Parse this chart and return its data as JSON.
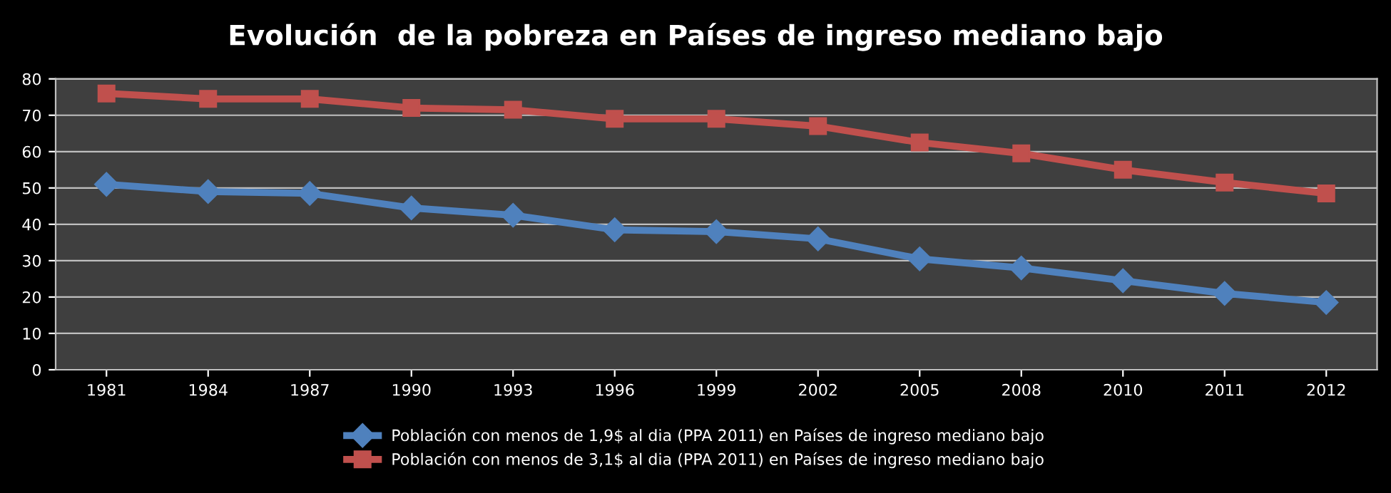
{
  "chart_data": {
    "type": "line",
    "title": "Evolución  de la pobreza en Países de ingreso mediano bajo",
    "categories": [
      "1981",
      "1984",
      "1987",
      "1990",
      "1993",
      "1996",
      "1999",
      "2002",
      "2005",
      "2008",
      "2010",
      "2011",
      "2012"
    ],
    "series": [
      {
        "name": "Población con menos de 1,9$ al dia (PPA 2011) en Países de ingreso mediano bajo",
        "color": "#4f81bd",
        "marker": "diamond",
        "values": [
          51,
          49,
          48.5,
          44.5,
          42.5,
          38.5,
          38,
          36,
          30.5,
          28,
          24.5,
          21,
          18.5
        ]
      },
      {
        "name": "Población con menos de 3,1$ al dia (PPA 2011) en Países de ingreso mediano bajo",
        "color": "#c0504d",
        "marker": "square",
        "values": [
          76,
          74.5,
          74.5,
          72,
          71.5,
          69,
          69,
          67,
          62.5,
          59.5,
          55,
          51.5,
          48.5
        ]
      }
    ],
    "ylim": [
      0,
      80
    ],
    "yticks": [
      0,
      10,
      20,
      30,
      40,
      50,
      60,
      70,
      80
    ],
    "grid": "y",
    "legend": "bottom"
  }
}
